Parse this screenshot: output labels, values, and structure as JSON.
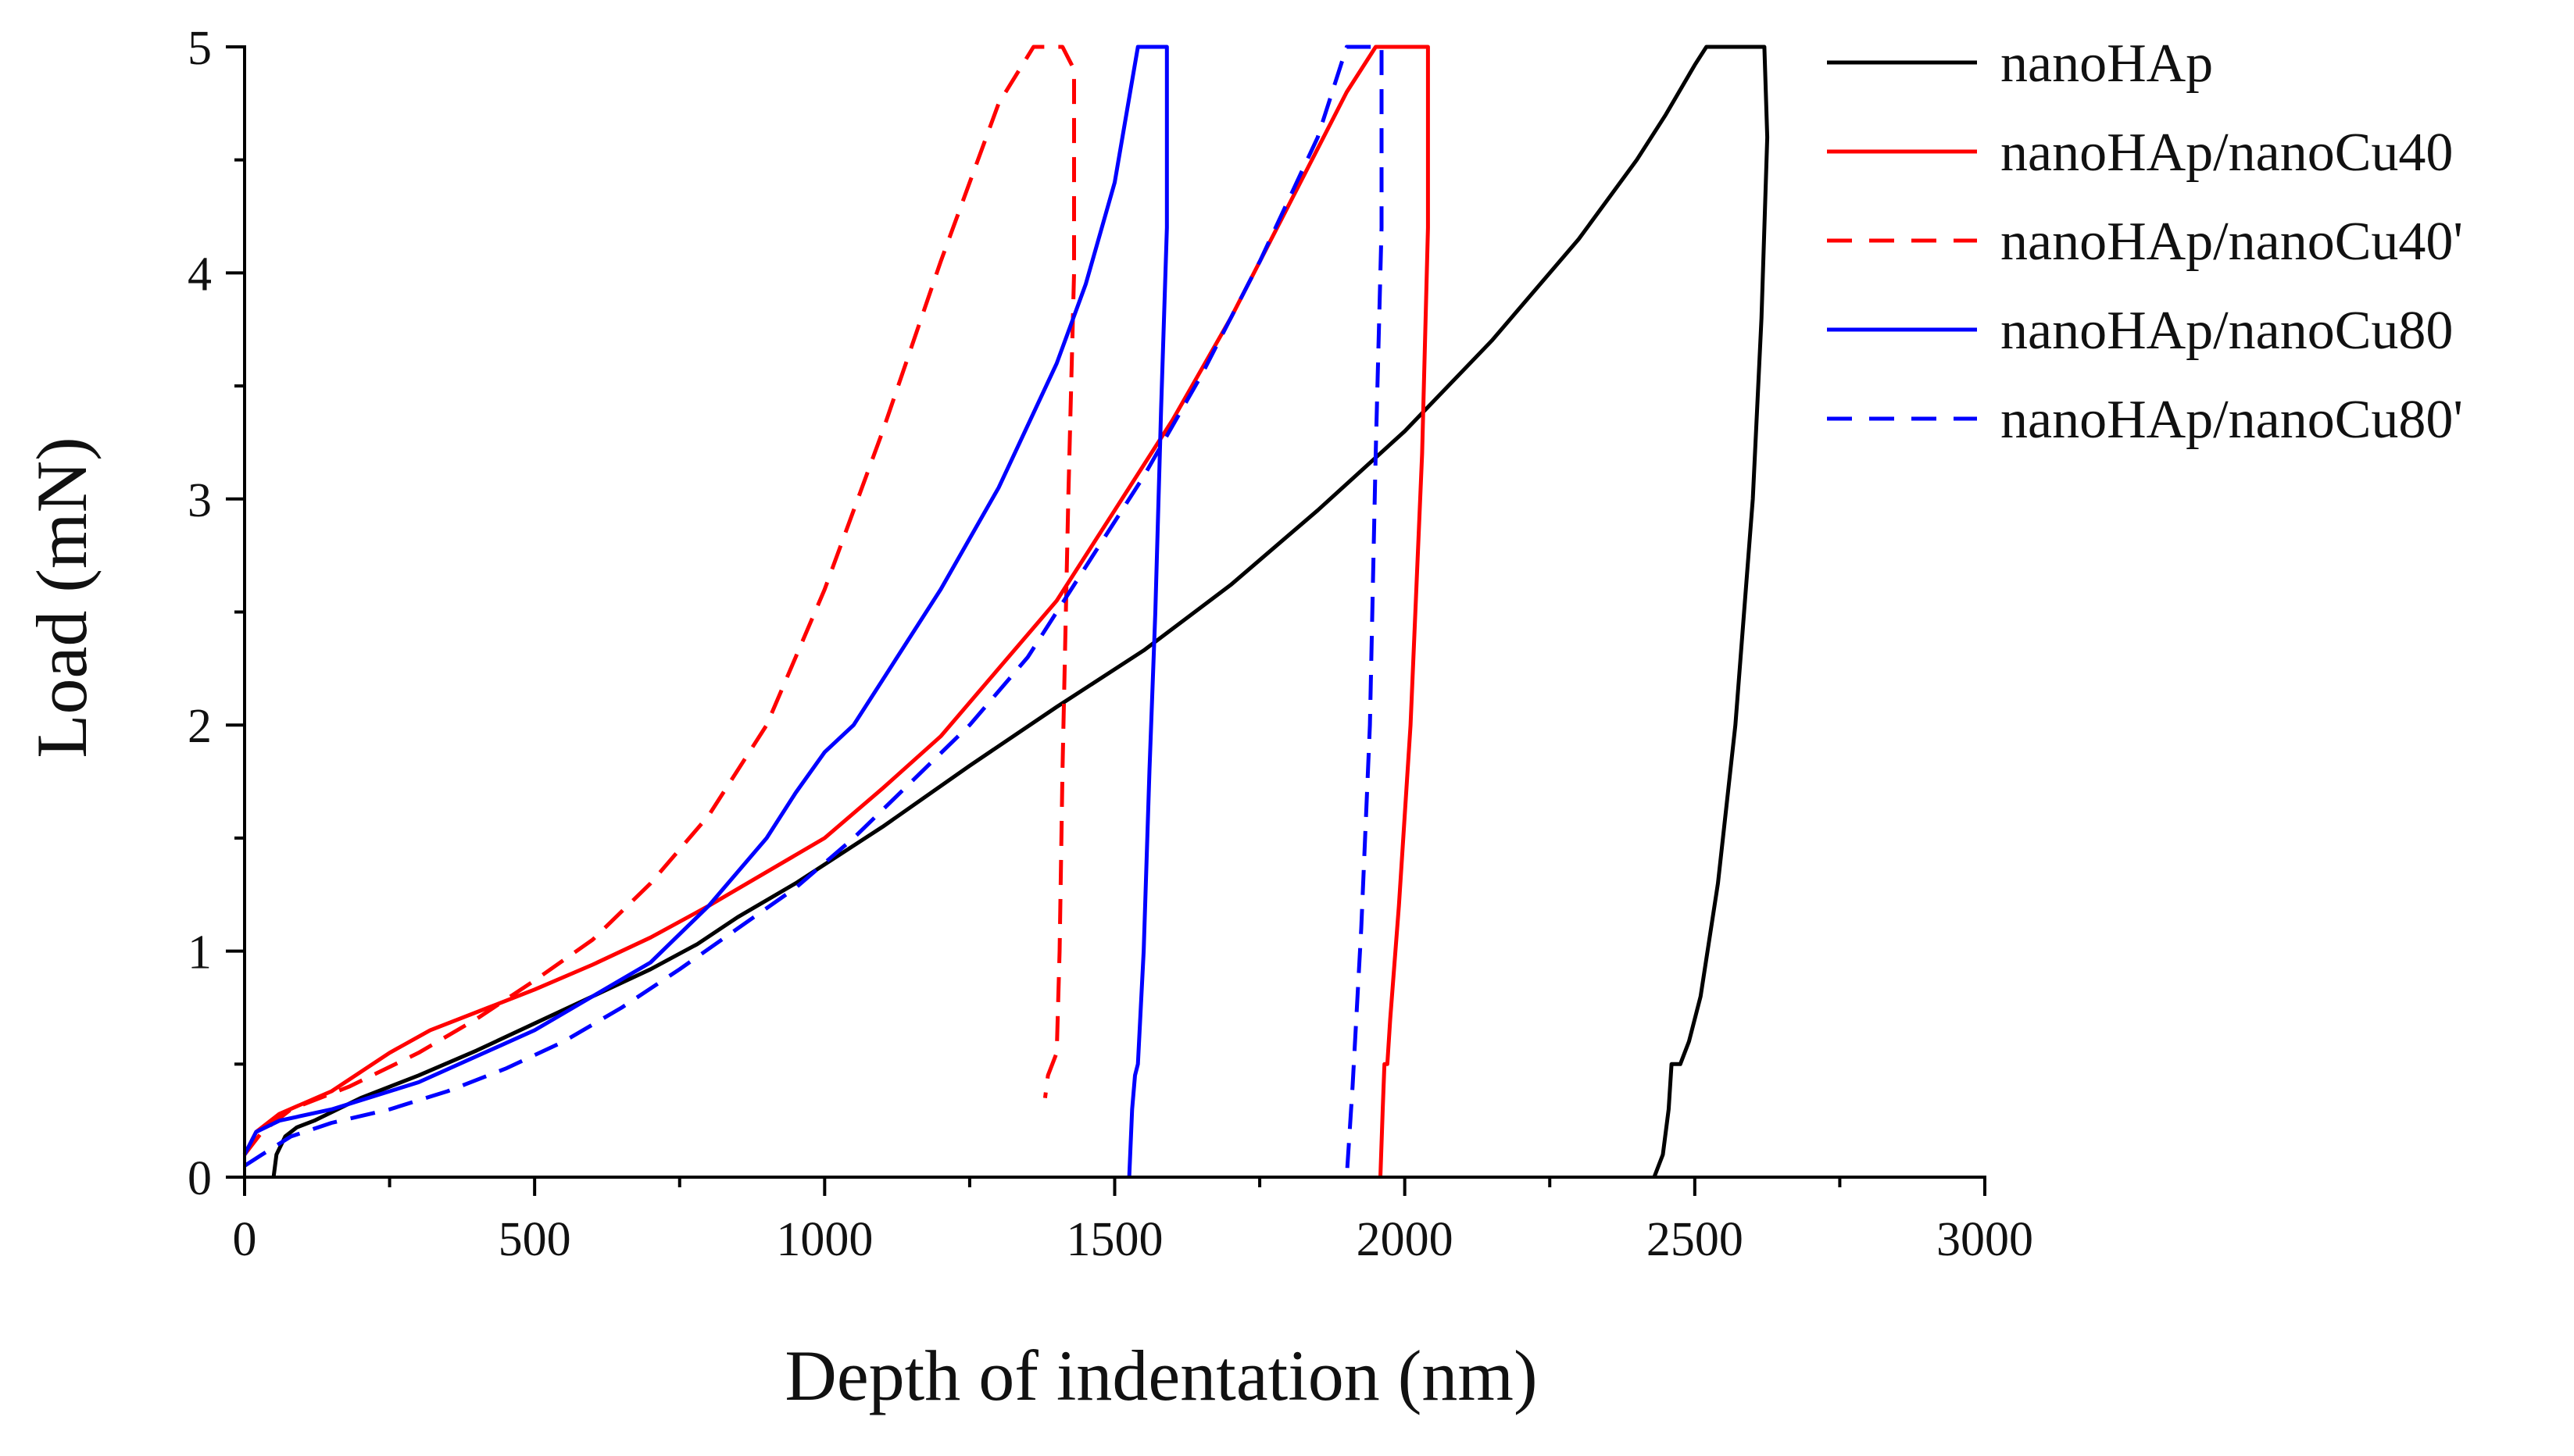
{
  "chart_data": {
    "type": "line",
    "title": "",
    "xlabel": "Depth of indentation (nm)",
    "ylabel": "Load (mN)",
    "xlim": [
      0,
      3000
    ],
    "ylim": [
      0,
      5
    ],
    "xticks": [
      0,
      500,
      1000,
      1500,
      2000,
      2500,
      3000
    ],
    "yticks": [
      0,
      1,
      2,
      3,
      4,
      5
    ],
    "grid": false,
    "legend_position": "top-right",
    "series": [
      {
        "name": "nanoHAp",
        "color": "#000000",
        "dash": "solid",
        "x": [
          50,
          55,
          70,
          90,
          120,
          200,
          300,
          400,
          500,
          600,
          700,
          780,
          850,
          950,
          1100,
          1250,
          1400,
          1550,
          1700,
          1850,
          2000,
          2150,
          2300,
          2400,
          2450,
          2500,
          2520,
          2620,
          2625,
          2615,
          2600,
          2570,
          2540,
          2510,
          2490,
          2475,
          2465,
          2460,
          2455,
          2445,
          2430
        ],
        "y": [
          0,
          0.1,
          0.18,
          0.22,
          0.25,
          0.35,
          0.45,
          0.56,
          0.68,
          0.8,
          0.92,
          1.03,
          1.15,
          1.3,
          1.55,
          1.82,
          2.08,
          2.33,
          2.62,
          2.95,
          3.3,
          3.7,
          4.15,
          4.5,
          4.7,
          4.92,
          5.0,
          5.0,
          4.6,
          3.8,
          3.0,
          2.0,
          1.3,
          0.8,
          0.6,
          0.5,
          0.5,
          0.5,
          0.3,
          0.1,
          0
        ]
      },
      {
        "name": "nanoHAp/nanoCu40",
        "color": "#ff0000",
        "dash": "solid",
        "x": [
          0,
          20,
          60,
          150,
          250,
          320,
          420,
          500,
          600,
          700,
          800,
          900,
          1000,
          1100,
          1200,
          1300,
          1400,
          1500,
          1600,
          1700,
          1800,
          1900,
          1950,
          2040,
          2040,
          2030,
          2010,
          1990,
          1975,
          1970,
          1965,
          1962,
          1958
        ],
        "y": [
          0.1,
          0.2,
          0.28,
          0.38,
          0.55,
          0.65,
          0.75,
          0.83,
          0.94,
          1.06,
          1.2,
          1.35,
          1.5,
          1.72,
          1.95,
          2.25,
          2.55,
          2.95,
          3.35,
          3.8,
          4.3,
          4.8,
          5.0,
          5.0,
          4.2,
          3.2,
          2.0,
          1.2,
          0.7,
          0.5,
          0.5,
          0.3,
          0
        ]
      },
      {
        "name": "nanoHAp/nanoCu40'",
        "color": "#ff0000",
        "dash": "dashed",
        "x": [
          0,
          30,
          80,
          180,
          300,
          400,
          500,
          600,
          700,
          800,
          900,
          1000,
          1100,
          1200,
          1300,
          1360,
          1410,
          1430,
          1430,
          1420,
          1410,
          1405,
          1400,
          1385,
          1380
        ],
        "y": [
          0.1,
          0.2,
          0.3,
          0.4,
          0.55,
          0.7,
          0.87,
          1.05,
          1.3,
          1.6,
          2.0,
          2.6,
          3.3,
          4.05,
          4.75,
          5.0,
          5.0,
          4.9,
          4.0,
          3.0,
          1.8,
          1.0,
          0.55,
          0.45,
          0.35
        ]
      },
      {
        "name": "nanoHAp/nanoCu80",
        "color": "#0000ff",
        "dash": "solid",
        "x": [
          0,
          20,
          60,
          150,
          300,
          500,
          600,
          700,
          800,
          900,
          950,
          1000,
          1050,
          1100,
          1200,
          1300,
          1400,
          1450,
          1500,
          1540,
          1590,
          1590,
          1580,
          1570,
          1560,
          1550,
          1540,
          1535,
          1530,
          1525
        ],
        "y": [
          0.1,
          0.2,
          0.25,
          0.3,
          0.42,
          0.65,
          0.8,
          0.95,
          1.2,
          1.5,
          1.7,
          1.88,
          2.0,
          2.2,
          2.6,
          3.05,
          3.6,
          3.95,
          4.4,
          5.0,
          5.0,
          4.2,
          3.4,
          2.5,
          1.8,
          1.0,
          0.5,
          0.45,
          0.3,
          0
        ]
      },
      {
        "name": "nanoHAp/nanoCu80'",
        "color": "#0000ff",
        "dash": "dashed",
        "x": [
          0,
          30,
          80,
          150,
          250,
          350,
          450,
          550,
          650,
          750,
          850,
          950,
          1050,
          1150,
          1250,
          1350,
          1450,
          1550,
          1650,
          1750,
          1850,
          1900,
          1960,
          1960,
          1950,
          1940,
          1925,
          1910,
          1900
        ],
        "y": [
          0.05,
          0.1,
          0.18,
          0.24,
          0.3,
          0.38,
          0.48,
          0.6,
          0.75,
          0.92,
          1.1,
          1.28,
          1.5,
          1.75,
          2.0,
          2.3,
          2.7,
          3.1,
          3.55,
          4.05,
          4.6,
          5.0,
          5.0,
          4.2,
          3.2,
          2.0,
          1.1,
          0.4,
          0
        ]
      }
    ]
  }
}
